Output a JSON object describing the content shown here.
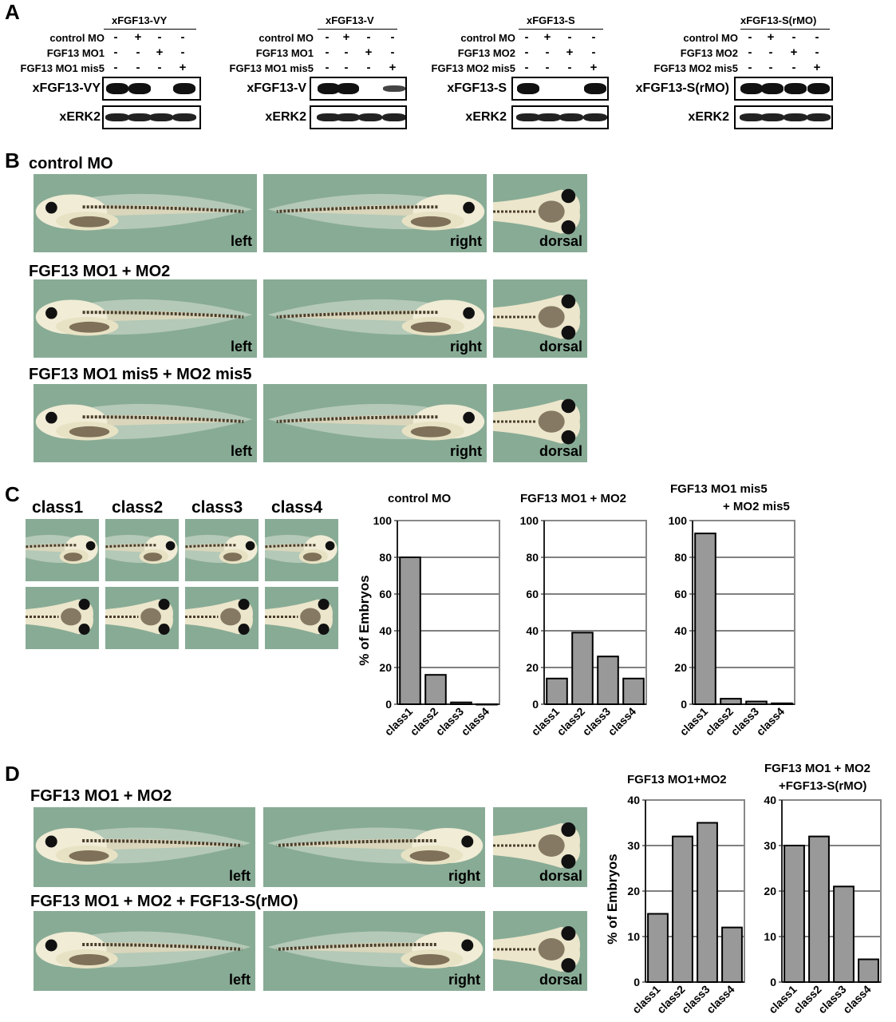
{
  "panels": {
    "a": "A",
    "b": "B",
    "c": "C",
    "d": "D"
  },
  "panel_a": {
    "blots": [
      {
        "title": "xFGF13-VY",
        "conditions": [
          {
            "label": "control MO",
            "marks": [
              "-",
              "+",
              "-",
              "-"
            ]
          },
          {
            "label": "FGF13 MO1",
            "marks": [
              "-",
              "-",
              "+",
              "-"
            ]
          },
          {
            "label": "FGF13 MO1 mis5",
            "marks": [
              "-",
              "-",
              "-",
              "+"
            ]
          }
        ],
        "band_label": "xFGF13-VY",
        "loading_label": "xERK2"
      },
      {
        "title": "xFGF13-V",
        "conditions": [
          {
            "label": "control MO",
            "marks": [
              "-",
              "+",
              "-",
              "-"
            ]
          },
          {
            "label": "FGF13 MO1",
            "marks": [
              "-",
              "-",
              "+",
              "-"
            ]
          },
          {
            "label": "FGF13 MO1 mis5",
            "marks": [
              "-",
              "-",
              "-",
              "+"
            ]
          }
        ],
        "band_label": "xFGF13-V",
        "loading_label": "xERK2"
      },
      {
        "title": "xFGF13-S",
        "conditions": [
          {
            "label": "control MO",
            "marks": [
              "-",
              "+",
              "-",
              "-"
            ]
          },
          {
            "label": "FGF13 MO2",
            "marks": [
              "-",
              "-",
              "+",
              "-"
            ]
          },
          {
            "label": "FGF13 MO2 mis5",
            "marks": [
              "-",
              "-",
              "-",
              "+"
            ]
          }
        ],
        "band_label": "xFGF13-S",
        "loading_label": "xERK2"
      },
      {
        "title": "xFGF13-S(rMO)",
        "conditions": [
          {
            "label": "control MO",
            "marks": [
              "-",
              "+",
              "-",
              "-"
            ]
          },
          {
            "label": "FGF13 MO2",
            "marks": [
              "-",
              "-",
              "+",
              "-"
            ]
          },
          {
            "label": "FGF13 MO2 mis5",
            "marks": [
              "-",
              "-",
              "-",
              "+"
            ]
          }
        ],
        "band_label": "xFGF13-S(rMO)",
        "loading_label": "xERK2"
      }
    ]
  },
  "panel_b": {
    "rows": [
      {
        "title": "control MO"
      },
      {
        "title": "FGF13 MO1 + MO2"
      },
      {
        "title": "FGF13 MO1 mis5 + MO2 mis5"
      }
    ],
    "views": [
      "left",
      "right",
      "dorsal"
    ]
  },
  "panel_c": {
    "classes": [
      "class1",
      "class2",
      "class3",
      "class4"
    ]
  },
  "panel_d": {
    "rows": [
      {
        "title": "FGF13 MO1 + MO2"
      },
      {
        "title": "FGF13 MO1 + MO2 + FGF13-S(rMO)"
      }
    ],
    "views": [
      "left",
      "right",
      "dorsal"
    ]
  },
  "chart_data": [
    {
      "type": "bar",
      "title": "control MO",
      "ylabel": "% of Embryos",
      "categories": [
        "class1",
        "class2",
        "class3",
        "class4"
      ],
      "values": [
        80,
        16,
        1,
        0
      ],
      "ylim": [
        0,
        100
      ],
      "yticks": [
        0,
        20,
        40,
        60,
        80,
        100
      ],
      "grid": true
    },
    {
      "type": "bar",
      "title": "FGF13 MO1 + MO2",
      "ylabel": "",
      "categories": [
        "class1",
        "class2",
        "class3",
        "class4"
      ],
      "values": [
        14,
        39,
        26,
        14
      ],
      "ylim": [
        0,
        100
      ],
      "yticks": [
        0,
        20,
        40,
        60,
        80,
        100
      ],
      "grid": true
    },
    {
      "type": "bar",
      "title": "FGF13 MO1 mis5",
      "title2": "+ MO2 mis5",
      "ylabel": "",
      "categories": [
        "class1",
        "class2",
        "class3",
        "class4"
      ],
      "values": [
        93,
        3,
        1.5,
        0.5
      ],
      "ylim": [
        0,
        100
      ],
      "yticks": [
        0,
        20,
        40,
        60,
        80,
        100
      ],
      "grid": true
    },
    {
      "type": "bar",
      "title": "FGF13 MO1+MO2",
      "ylabel": "% of Embryos",
      "categories": [
        "class1",
        "class2",
        "class3",
        "class4"
      ],
      "values": [
        15,
        32,
        35,
        12
      ],
      "ylim": [
        0,
        40
      ],
      "yticks": [
        0,
        10,
        20,
        30,
        40
      ],
      "grid": true
    },
    {
      "type": "bar",
      "title": "FGF13 MO1 + MO2",
      "title2": "+FGF13-S(rMO)",
      "ylabel": "",
      "categories": [
        "class1",
        "class2",
        "class3",
        "class4"
      ],
      "values": [
        30,
        32,
        21,
        5
      ],
      "ylim": [
        0,
        40
      ],
      "yticks": [
        0,
        10,
        20,
        30,
        40
      ],
      "grid": true
    }
  ],
  "colors": {
    "bar": "#999999",
    "photo_bg": "#88ab95",
    "band": "#111111"
  }
}
